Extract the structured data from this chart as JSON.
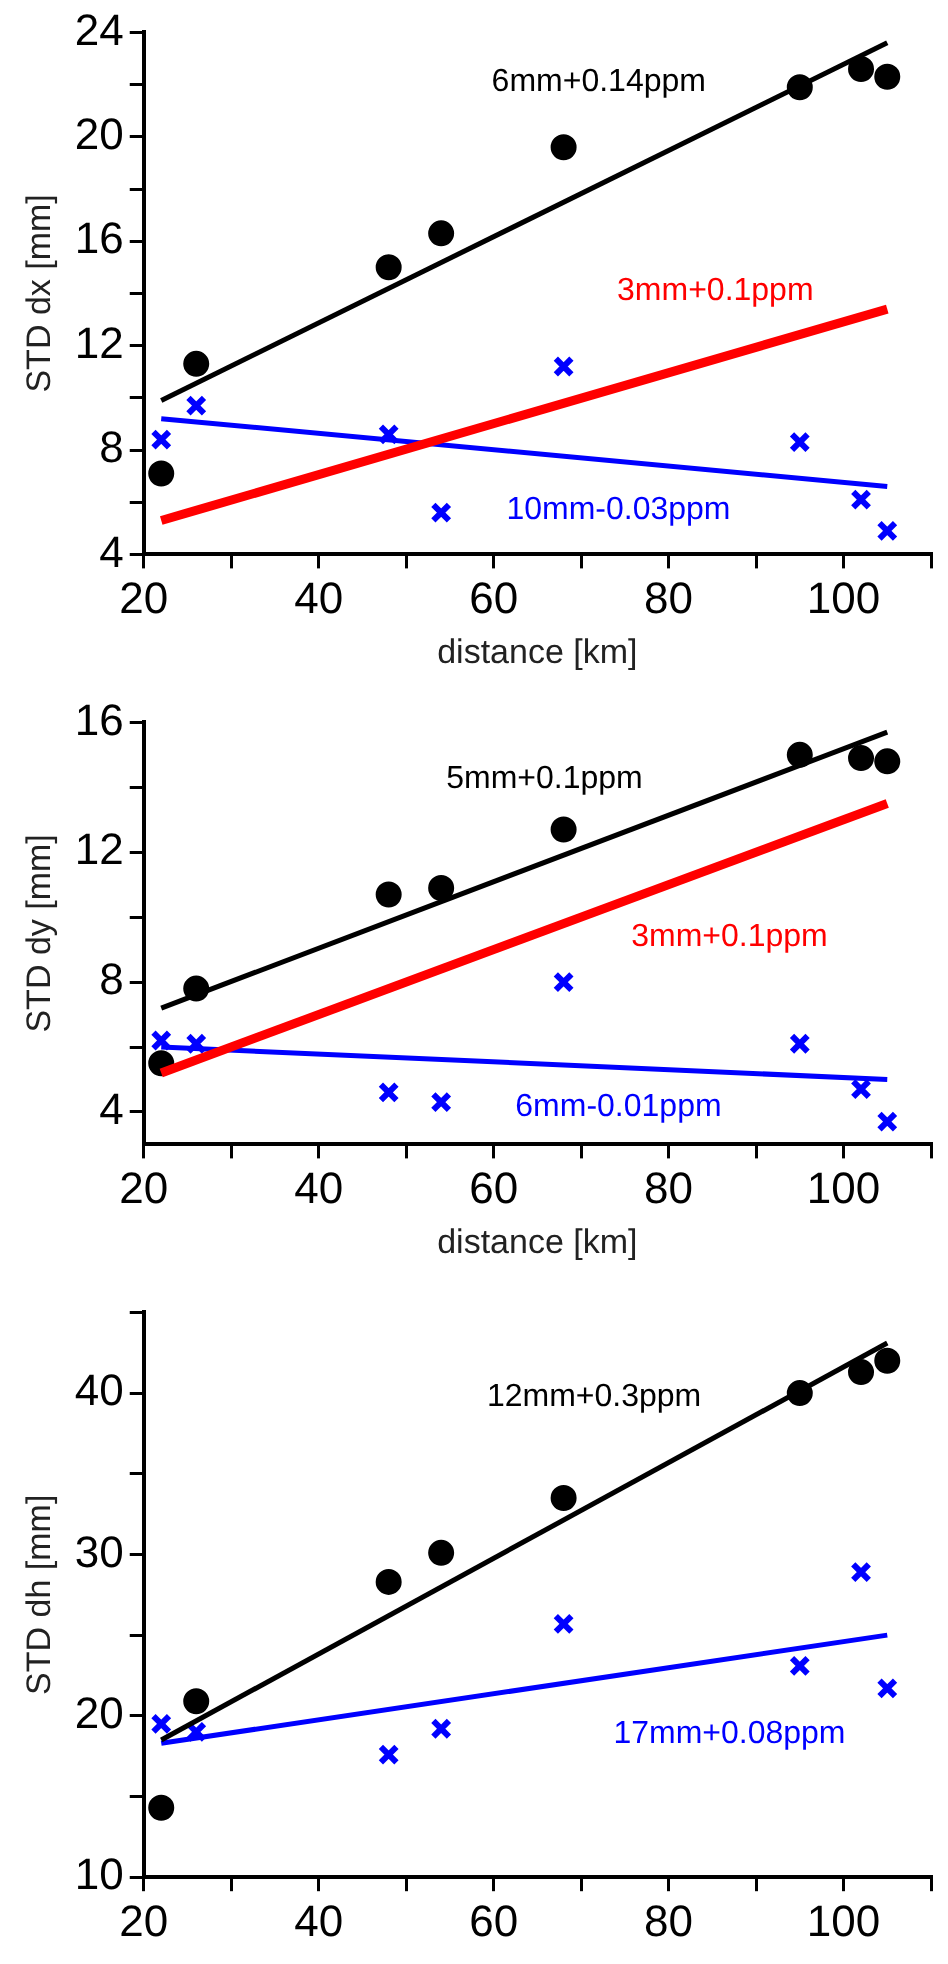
{
  "chart_data": [
    {
      "type": "scatter",
      "ylabel": "STD dx [mm]",
      "xlabel": "distance [km]",
      "grid": false,
      "legend": false,
      "xlim": [
        20,
        110
      ],
      "xticks": [
        20,
        {
          "value": 30,
          "label": null
        },
        40,
        {
          "value": 50,
          "label": null
        },
        60,
        {
          "value": 70,
          "label": null
        },
        80,
        {
          "value": 90,
          "label": null
        },
        100,
        {
          "value": 110,
          "label": null
        }
      ],
      "ylim": [
        4,
        24
      ],
      "yticks": [
        4,
        {
          "value": 6,
          "label": null
        },
        8,
        {
          "value": 10,
          "label": null
        },
        12,
        {
          "value": 14,
          "label": null
        },
        16,
        {
          "value": 18,
          "label": null
        },
        20,
        {
          "value": 22,
          "label": null
        },
        24
      ],
      "series": [
        {
          "type": "line",
          "name": "3mm+0.1ppm",
          "color": "#ff0000",
          "marker": "none",
          "x": [
            22,
            105
          ],
          "values": [
            5.3,
            13.4
          ]
        },
        {
          "type": "line",
          "name": "6mm+0.14ppm",
          "color": "#000000",
          "marker": "none",
          "x": [
            22,
            105
          ],
          "values": [
            9.9,
            23.6
          ]
        },
        {
          "type": "line",
          "name": "10mm-0.03ppm",
          "color": "#0000ff",
          "marker": "none",
          "x": [
            22,
            105
          ],
          "values": [
            9.2,
            6.6
          ]
        },
        {
          "type": "scatter",
          "color": "#000000",
          "marker": "circle",
          "x": [
            22,
            26,
            48,
            54,
            68,
            95,
            102,
            105
          ],
          "values": [
            7.1,
            11.3,
            15.0,
            16.3,
            19.6,
            21.9,
            22.6,
            22.3
          ]
        },
        {
          "type": "scatter",
          "color": "#0000ff",
          "marker": "cross",
          "x": [
            22,
            26,
            48,
            54,
            68,
            95,
            102,
            105
          ],
          "values": [
            8.4,
            9.7,
            8.6,
            5.6,
            11.2,
            8.3,
            6.1,
            4.9
          ]
        }
      ]
    },
    {
      "type": "scatter",
      "ylabel": "STD dy [mm]",
      "xlabel": "distance [km]",
      "grid": false,
      "legend": false,
      "xlim": [
        20,
        110
      ],
      "xticks": [
        20,
        {
          "value": 30,
          "label": null
        },
        40,
        {
          "value": 50,
          "label": null
        },
        60,
        {
          "value": 70,
          "label": null
        },
        80,
        {
          "value": 90,
          "label": null
        },
        100,
        {
          "value": 110,
          "label": null
        }
      ],
      "ylim": [
        3,
        16
      ],
      "yticks": [
        4,
        {
          "value": 6,
          "label": null
        },
        8,
        {
          "value": 10,
          "label": null
        },
        12,
        {
          "value": 14,
          "label": null
        },
        16
      ],
      "series": [
        {
          "type": "line",
          "name": "3mm+0.1ppm",
          "color": "#ff0000",
          "marker": "none",
          "x": [
            22,
            105
          ],
          "values": [
            5.2,
            13.5
          ]
        },
        {
          "type": "line",
          "name": "5mm+0.1ppm",
          "color": "#000000",
          "marker": "none",
          "x": [
            22,
            105
          ],
          "values": [
            7.2,
            15.7
          ]
        },
        {
          "type": "line",
          "name": "6mm-0.01ppm",
          "color": "#0000ff",
          "marker": "none",
          "x": [
            22,
            105
          ],
          "values": [
            6.0,
            5.0
          ]
        },
        {
          "type": "scatter",
          "color": "#000000",
          "marker": "circle",
          "x": [
            22,
            26,
            48,
            54,
            68,
            95,
            102,
            105
          ],
          "values": [
            5.5,
            7.8,
            10.7,
            10.9,
            12.7,
            15.0,
            14.9,
            14.8
          ]
        },
        {
          "type": "scatter",
          "color": "#0000ff",
          "marker": "cross",
          "x": [
            22,
            26,
            48,
            54,
            68,
            95,
            102,
            105
          ],
          "values": [
            6.2,
            6.1,
            4.6,
            4.3,
            8.0,
            6.1,
            4.7,
            3.7
          ]
        }
      ]
    },
    {
      "type": "scatter",
      "ylabel": "STD dh [mm]",
      "grid": false,
      "legend": false,
      "xlim": [
        20,
        110
      ],
      "xticks": [
        20,
        {
          "value": 30,
          "label": null
        },
        40,
        {
          "value": 50,
          "label": null
        },
        60,
        {
          "value": 70,
          "label": null
        },
        80,
        {
          "value": 90,
          "label": null
        },
        100,
        {
          "value": 110,
          "label": null
        }
      ],
      "ylim": [
        10,
        45
      ],
      "yticks": [
        10,
        {
          "value": 15,
          "label": null
        },
        20,
        {
          "value": 25,
          "label": null
        },
        30,
        {
          "value": 35,
          "label": null
        },
        40,
        {
          "value": 45,
          "label": null
        }
      ],
      "series": [
        {
          "type": "line",
          "name": "12mm+0.3ppm",
          "color": "#000000",
          "marker": "none",
          "x": [
            22,
            105
          ],
          "values": [
            18.5,
            43.1
          ]
        },
        {
          "type": "line",
          "name": "17mm+0.08ppm",
          "color": "#0000ff",
          "marker": "none",
          "x": [
            22,
            105
          ],
          "values": [
            18.3,
            25.0
          ]
        },
        {
          "type": "scatter",
          "color": "#000000",
          "marker": "circle",
          "x": [
            22,
            26,
            48,
            54,
            68,
            95,
            102,
            105
          ],
          "values": [
            14.3,
            20.9,
            28.3,
            30.1,
            33.5,
            40.0,
            41.3,
            42.0
          ]
        },
        {
          "type": "scatter",
          "color": "#0000ff",
          "marker": "cross",
          "x": [
            22,
            26,
            48,
            54,
            68,
            95,
            102,
            105
          ],
          "values": [
            19.5,
            19.0,
            17.6,
            19.2,
            25.7,
            23.1,
            28.9,
            21.7
          ]
        }
      ]
    }
  ]
}
